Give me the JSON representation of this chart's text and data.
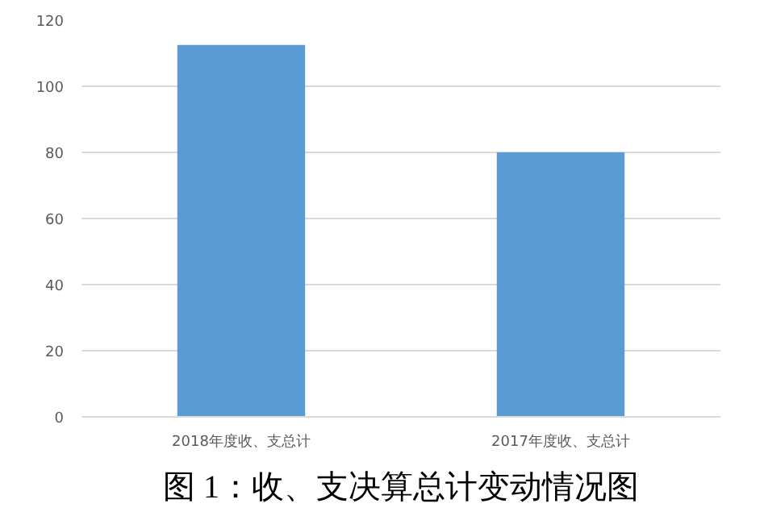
{
  "chart_data": {
    "type": "bar",
    "title": "图 1：收、支决算总计变动情况图",
    "categories": [
      "2018年度收、支总计",
      "2017年度收、支总计"
    ],
    "values": [
      112.5,
      80
    ],
    "color": "#5b9bd5",
    "ylim": [
      0,
      120
    ],
    "yticks": [
      0,
      20,
      40,
      60,
      80,
      100,
      120
    ],
    "grid": "y"
  }
}
